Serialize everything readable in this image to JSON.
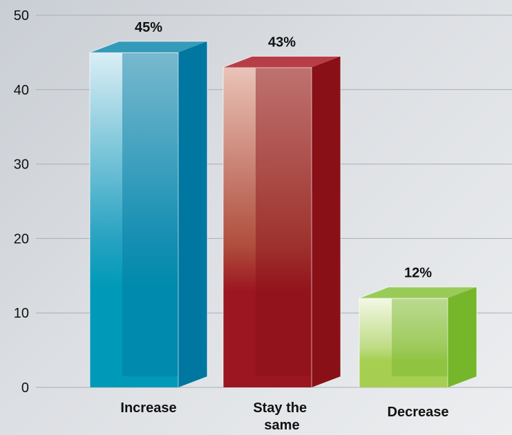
{
  "chart_data": {
    "type": "bar",
    "categories": [
      "Increase",
      "Stay the same",
      "Decrease"
    ],
    "category_lines": [
      [
        "Increase"
      ],
      [
        "Stay the",
        "same"
      ],
      [
        "Decrease"
      ]
    ],
    "values": [
      45,
      43,
      12
    ],
    "data_labels": [
      "45%",
      "43%",
      "12%"
    ],
    "yticks": [
      "0",
      "10",
      "20",
      "30",
      "40",
      "50"
    ],
    "ylim": [
      0,
      50
    ],
    "grid": true,
    "colors": {
      "increase": {
        "light": "#dbeef5",
        "mid": "#2aa3c2",
        "base": "#009ab8",
        "side": "#0077a0",
        "top": "#1a8fb3"
      },
      "stay": {
        "light": "#eac3b8",
        "mid": "#b0503f",
        "base": "#9b1620",
        "side": "#8a1018",
        "top": "#b0222c"
      },
      "decrease": {
        "light": "#f4f8e6",
        "mid": "#bfdc86",
        "base": "#a6cf52",
        "side": "#76b62a",
        "top": "#8cc63f"
      }
    }
  }
}
